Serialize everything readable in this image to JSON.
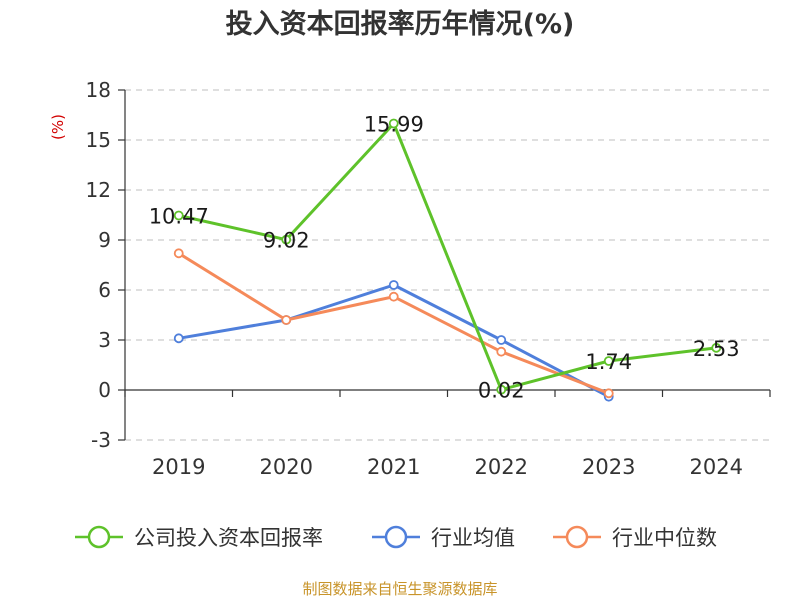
{
  "chart_data": {
    "type": "line",
    "title": "投入资本回报率历年情况(%)",
    "ylabel": "(%)",
    "xlabel": "",
    "categories": [
      "2019",
      "2020",
      "2021",
      "2022",
      "2023",
      "2024"
    ],
    "ylim": [
      -3,
      18
    ],
    "yticks": [
      -3,
      0,
      3,
      6,
      9,
      12,
      15,
      18
    ],
    "grid": true,
    "legend_position": "bottom",
    "series": [
      {
        "name": "公司投入资本回报率",
        "color": "#5ec22a",
        "values": [
          10.47,
          9.02,
          15.99,
          0.02,
          1.74,
          2.53
        ],
        "labels": [
          "10.47",
          "9.02",
          "15.99",
          "0.02",
          "1.74",
          "2.53"
        ]
      },
      {
        "name": "行业均值",
        "color": "#4f7fdb",
        "values": [
          3.1,
          4.2,
          6.3,
          3.0,
          -0.4,
          null
        ]
      },
      {
        "name": "行业中位数",
        "color": "#f58a5a",
        "values": [
          8.2,
          4.2,
          5.6,
          2.3,
          -0.2,
          null
        ]
      }
    ]
  },
  "source_text": "制图数据来自恒生聚源数据库"
}
